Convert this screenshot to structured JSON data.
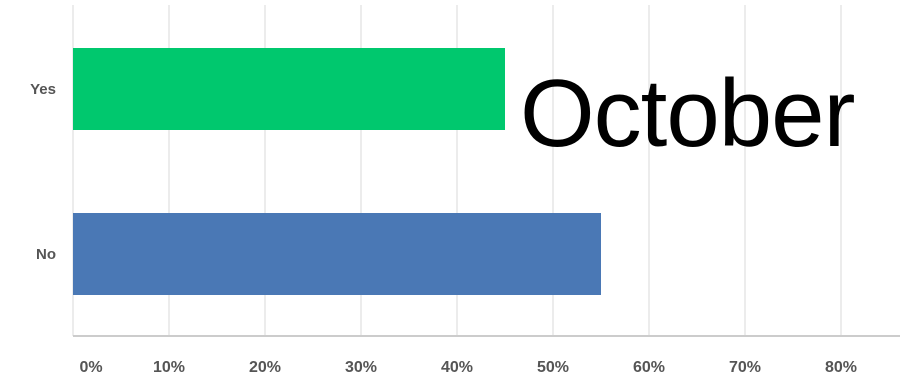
{
  "chart_data": {
    "type": "bar",
    "orientation": "horizontal",
    "categories": [
      "Yes",
      "No"
    ],
    "values": [
      45,
      55
    ],
    "colors": [
      "#00c86e",
      "#4a78b5"
    ],
    "xlim": [
      0,
      85
    ],
    "xticks": [
      "0%",
      "10%",
      "20%",
      "30%",
      "40%",
      "50%",
      "60%",
      "70%",
      "80%"
    ],
    "xtick_values": [
      0,
      10,
      20,
      30,
      40,
      50,
      60,
      70,
      80
    ],
    "grid": "vertical",
    "annotation": "October",
    "title": "",
    "xlabel": "",
    "ylabel": ""
  }
}
